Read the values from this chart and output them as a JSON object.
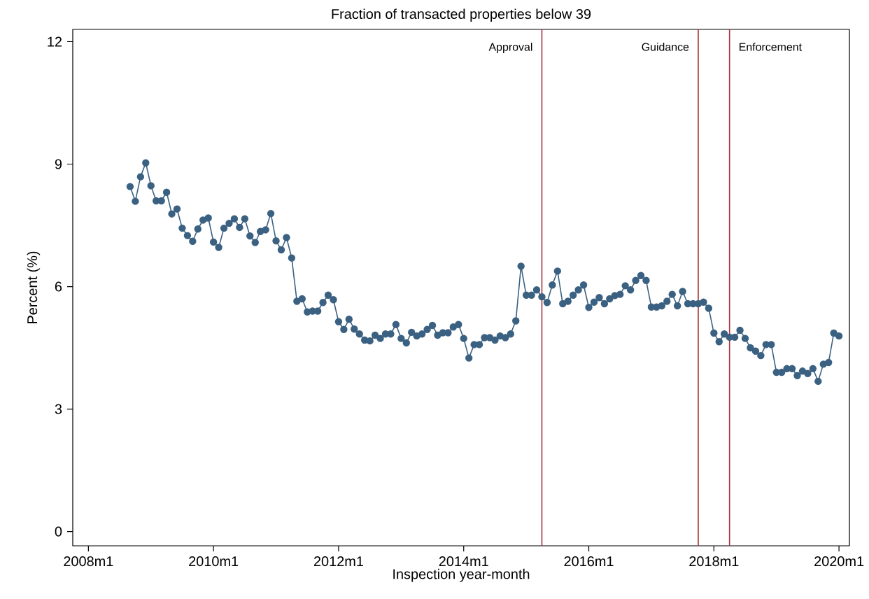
{
  "chart_data": {
    "type": "line",
    "title": "Fraction of transacted properties below 39",
    "xlabel": "Inspection year-month",
    "ylabel": "Percent (%)",
    "x": [
      "2008-09",
      "2008-10",
      "2008-11",
      "2008-12",
      "2009-01",
      "2009-02",
      "2009-03",
      "2009-04",
      "2009-05",
      "2009-06",
      "2009-07",
      "2009-08",
      "2009-09",
      "2009-10",
      "2009-11",
      "2009-12",
      "2010-01",
      "2010-02",
      "2010-03",
      "2010-04",
      "2010-05",
      "2010-06",
      "2010-07",
      "2010-08",
      "2010-09",
      "2010-10",
      "2010-11",
      "2010-12",
      "2011-01",
      "2011-02",
      "2011-03",
      "2011-04",
      "2011-05",
      "2011-06",
      "2011-07",
      "2011-08",
      "2011-09",
      "2011-10",
      "2011-11",
      "2011-12",
      "2012-01",
      "2012-02",
      "2012-03",
      "2012-04",
      "2012-05",
      "2012-06",
      "2012-07",
      "2012-08",
      "2012-09",
      "2012-10",
      "2012-11",
      "2012-12",
      "2013-01",
      "2013-02",
      "2013-03",
      "2013-04",
      "2013-05",
      "2013-06",
      "2013-07",
      "2013-08",
      "2013-09",
      "2013-10",
      "2013-11",
      "2013-12",
      "2014-01",
      "2014-02",
      "2014-03",
      "2014-04",
      "2014-05",
      "2014-06",
      "2014-07",
      "2014-08",
      "2014-09",
      "2014-10",
      "2014-11",
      "2014-12",
      "2015-01",
      "2015-02",
      "2015-03",
      "2015-04",
      "2015-05",
      "2015-06",
      "2015-07",
      "2015-08",
      "2015-09",
      "2015-10",
      "2015-11",
      "2015-12",
      "2016-01",
      "2016-02",
      "2016-03",
      "2016-04",
      "2016-05",
      "2016-06",
      "2016-07",
      "2016-08",
      "2016-09",
      "2016-10",
      "2016-11",
      "2016-12",
      "2017-01",
      "2017-02",
      "2017-03",
      "2017-04",
      "2017-05",
      "2017-06",
      "2017-07",
      "2017-08",
      "2017-09",
      "2017-10",
      "2017-11",
      "2017-12",
      "2018-01",
      "2018-02",
      "2018-03",
      "2018-04",
      "2018-05",
      "2018-06",
      "2018-07",
      "2018-08",
      "2018-09",
      "2018-10",
      "2018-11",
      "2018-12",
      "2019-01",
      "2019-02",
      "2019-03",
      "2019-04",
      "2019-05",
      "2019-06",
      "2019-07",
      "2019-08",
      "2019-09",
      "2019-10",
      "2019-11",
      "2019-12",
      "2020-01"
    ],
    "series": [
      {
        "color": "#3b6182",
        "values": [
          8.45,
          8.09,
          8.69,
          9.03,
          8.47,
          8.1,
          8.1,
          8.31,
          7.78,
          7.9,
          7.43,
          7.25,
          7.11,
          7.41,
          7.63,
          7.68,
          7.09,
          6.96,
          7.43,
          7.55,
          7.66,
          7.45,
          7.66,
          7.24,
          7.08,
          7.35,
          7.39,
          7.79,
          7.12,
          6.9,
          7.2,
          6.7,
          5.64,
          5.7,
          5.38,
          5.4,
          5.4,
          5.61,
          5.79,
          5.68,
          5.14,
          4.95,
          5.2,
          4.96,
          4.84,
          4.69,
          4.67,
          4.81,
          4.73,
          4.84,
          4.84,
          5.07,
          4.73,
          4.62,
          4.88,
          4.79,
          4.84,
          4.95,
          5.05,
          4.81,
          4.87,
          4.87,
          5.01,
          5.07,
          4.73,
          4.25,
          4.58,
          4.58,
          4.75,
          4.75,
          4.69,
          4.79,
          4.75,
          4.84,
          5.16,
          6.5,
          5.79,
          5.79,
          5.92,
          5.75,
          5.61,
          6.04,
          6.38,
          5.58,
          5.64,
          5.79,
          5.92,
          6.04,
          5.49,
          5.62,
          5.73,
          5.58,
          5.7,
          5.78,
          5.81,
          6.02,
          5.92,
          6.15,
          6.27,
          6.15,
          5.5,
          5.5,
          5.53,
          5.64,
          5.81,
          5.53,
          5.88,
          5.58,
          5.58,
          5.58,
          5.62,
          5.47,
          4.86,
          4.65,
          4.84,
          4.76,
          4.76,
          4.93,
          4.73,
          4.5,
          4.42,
          4.31,
          4.58,
          4.58,
          3.9,
          3.9,
          3.99,
          3.99,
          3.82,
          3.93,
          3.87,
          3.99,
          3.68,
          4.1,
          4.14,
          4.86,
          4.79
        ]
      }
    ],
    "xlim": [
      "2007-10",
      "2020-03"
    ],
    "ylim": [
      -0.35,
      12.3
    ],
    "xticks": [
      {
        "value": "2008-01",
        "label": "2008m1"
      },
      {
        "value": "2010-01",
        "label": "2010m1"
      },
      {
        "value": "2012-01",
        "label": "2012m1"
      },
      {
        "value": "2014-01",
        "label": "2014m1"
      },
      {
        "value": "2016-01",
        "label": "2016m1"
      },
      {
        "value": "2018-01",
        "label": "2018m1"
      },
      {
        "value": "2020-01",
        "label": "2020m1"
      }
    ],
    "yticks": [
      0,
      3,
      6,
      9,
      12
    ],
    "ref_lines": [
      {
        "axis": "x",
        "value": "2015-04",
        "label": "Approval",
        "color": "#a8323c"
      },
      {
        "axis": "x",
        "value": "2017-10",
        "label": "Guidance",
        "color": "#a8323c"
      },
      {
        "axis": "x",
        "value": "2018-04",
        "label": "Enforcement",
        "color": "#a8323c"
      }
    ],
    "grid": false,
    "marker": "circle",
    "line_style": "solid"
  }
}
